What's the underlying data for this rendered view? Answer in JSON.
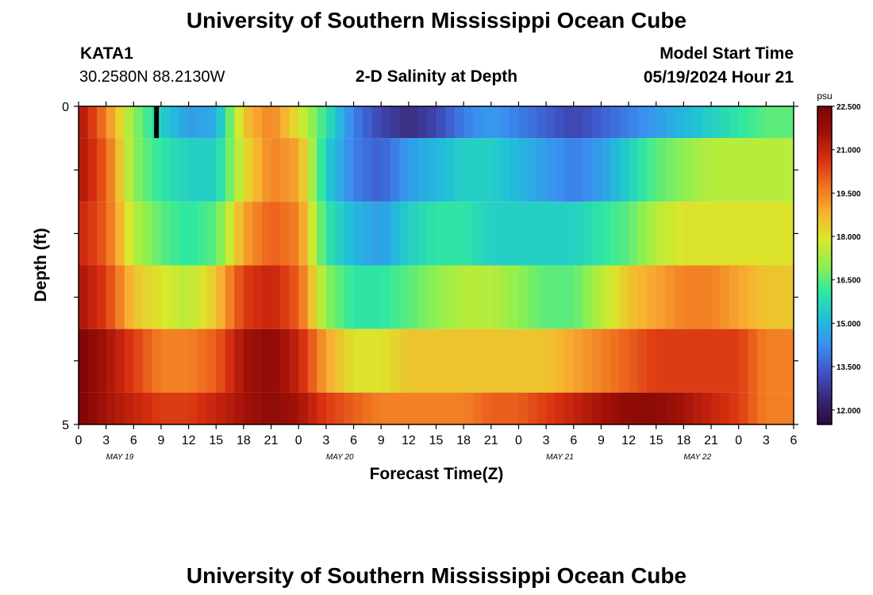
{
  "header": {
    "title": "University of Southern Mississippi Ocean Cube",
    "station_id": "KATA1",
    "station_coords": "30.2580N  88.2130W",
    "plot_title": "2-D Salinity at Depth",
    "model_start_label": "Model Start Time",
    "model_start_value": "05/19/2024 Hour 21"
  },
  "footer": {
    "title": "University of Southern Mississippi Ocean Cube"
  },
  "colors": {
    "scale": [
      "#2a0a3a",
      "#3a2a7a",
      "#3f55c8",
      "#3a8ff0",
      "#20c0d8",
      "#30e8a0",
      "#8ef050",
      "#d8e82a",
      "#f8b030",
      "#f07020",
      "#d83010",
      "#a01008",
      "#7a0404"
    ],
    "outline": "#000000"
  },
  "chart_data": {
    "type": "heatmap",
    "xlabel": "Forecast Time(Z)",
    "ylabel": "Depth (ft)",
    "unit_label": "psu",
    "x_tick_labels": [
      "0",
      "3",
      "6",
      "9",
      "12",
      "15",
      "18",
      "21",
      "0",
      "3",
      "6",
      "9",
      "12",
      "15",
      "18",
      "21",
      "0",
      "3",
      "6",
      "9",
      "12",
      "15",
      "18",
      "21",
      "0",
      "3",
      "6"
    ],
    "date_labels": [
      {
        "label": "MAY 19",
        "hour": 4.5
      },
      {
        "label": "MAY 20",
        "hour": 28.5
      },
      {
        "label": "MAY 21",
        "hour": 52.5
      },
      {
        "label": "MAY 22",
        "hour": 67.5
      }
    ],
    "x_range_hours": [
      0,
      78
    ],
    "y_range": [
      0,
      5
    ],
    "y_tick_labels": [
      "0",
      "5"
    ],
    "colorbar_range": [
      11.5,
      22.5
    ],
    "colorbar_ticks": [
      "12.000",
      "13.500",
      "15.000",
      "16.500",
      "18.000",
      "19.500",
      "21.000",
      "22.500"
    ],
    "layer_depths": [
      "0-0.5",
      "0.5-1.5",
      "1.5-2.5",
      "2.5-3.5",
      "3.5-4.5",
      "4.5-5"
    ],
    "anchor_hours": [
      0,
      3,
      6,
      9,
      12,
      15,
      18,
      21,
      24,
      27,
      30,
      33,
      36,
      39,
      42,
      45,
      48,
      51,
      54,
      57,
      60,
      63,
      66,
      69,
      72,
      75,
      78
    ],
    "salinity_rows": [
      [
        21.5,
        19.5,
        17.0,
        15.5,
        14.5,
        14.8,
        18.5,
        19.5,
        18.0,
        16.0,
        14.0,
        13.0,
        12.5,
        13.0,
        14.0,
        14.5,
        14.0,
        13.5,
        13.0,
        13.5,
        14.0,
        14.5,
        15.0,
        15.5,
        16.0,
        16.5,
        16.5
      ],
      [
        21.5,
        20.0,
        17.0,
        16.0,
        15.5,
        15.5,
        18.0,
        19.5,
        19.0,
        15.5,
        14.0,
        13.5,
        14.5,
        15.0,
        15.5,
        15.5,
        15.0,
        14.5,
        14.0,
        14.5,
        15.5,
        16.5,
        17.0,
        17.5,
        17.5,
        17.5,
        17.5
      ],
      [
        21.0,
        20.0,
        17.5,
        16.5,
        16.0,
        16.5,
        19.0,
        20.0,
        19.5,
        16.0,
        15.0,
        14.5,
        15.5,
        16.0,
        16.0,
        15.5,
        15.5,
        15.5,
        15.5,
        16.0,
        16.5,
        17.5,
        18.0,
        18.0,
        18.0,
        18.0,
        18.0
      ],
      [
        21.5,
        20.5,
        18.5,
        18.0,
        17.5,
        18.5,
        20.5,
        21.0,
        20.0,
        17.0,
        16.0,
        16.0,
        16.5,
        17.0,
        17.5,
        17.5,
        17.0,
        16.5,
        16.5,
        17.5,
        18.5,
        19.0,
        19.5,
        19.5,
        19.0,
        18.5,
        18.5
      ],
      [
        22.5,
        21.5,
        20.5,
        19.5,
        19.5,
        20.0,
        21.5,
        22.0,
        21.0,
        19.0,
        18.0,
        18.0,
        18.5,
        18.5,
        18.5,
        18.5,
        18.5,
        18.5,
        19.0,
        19.5,
        20.0,
        20.5,
        20.5,
        20.5,
        20.5,
        19.5,
        19.5
      ],
      [
        22.5,
        21.5,
        21.0,
        20.5,
        20.5,
        21.0,
        21.5,
        22.0,
        21.5,
        20.5,
        20.0,
        19.5,
        19.5,
        19.5,
        19.5,
        20.0,
        20.0,
        20.5,
        21.0,
        21.5,
        22.0,
        22.0,
        21.5,
        21.0,
        20.5,
        19.5,
        19.5
      ]
    ],
    "marker_hour": 8.5
  }
}
